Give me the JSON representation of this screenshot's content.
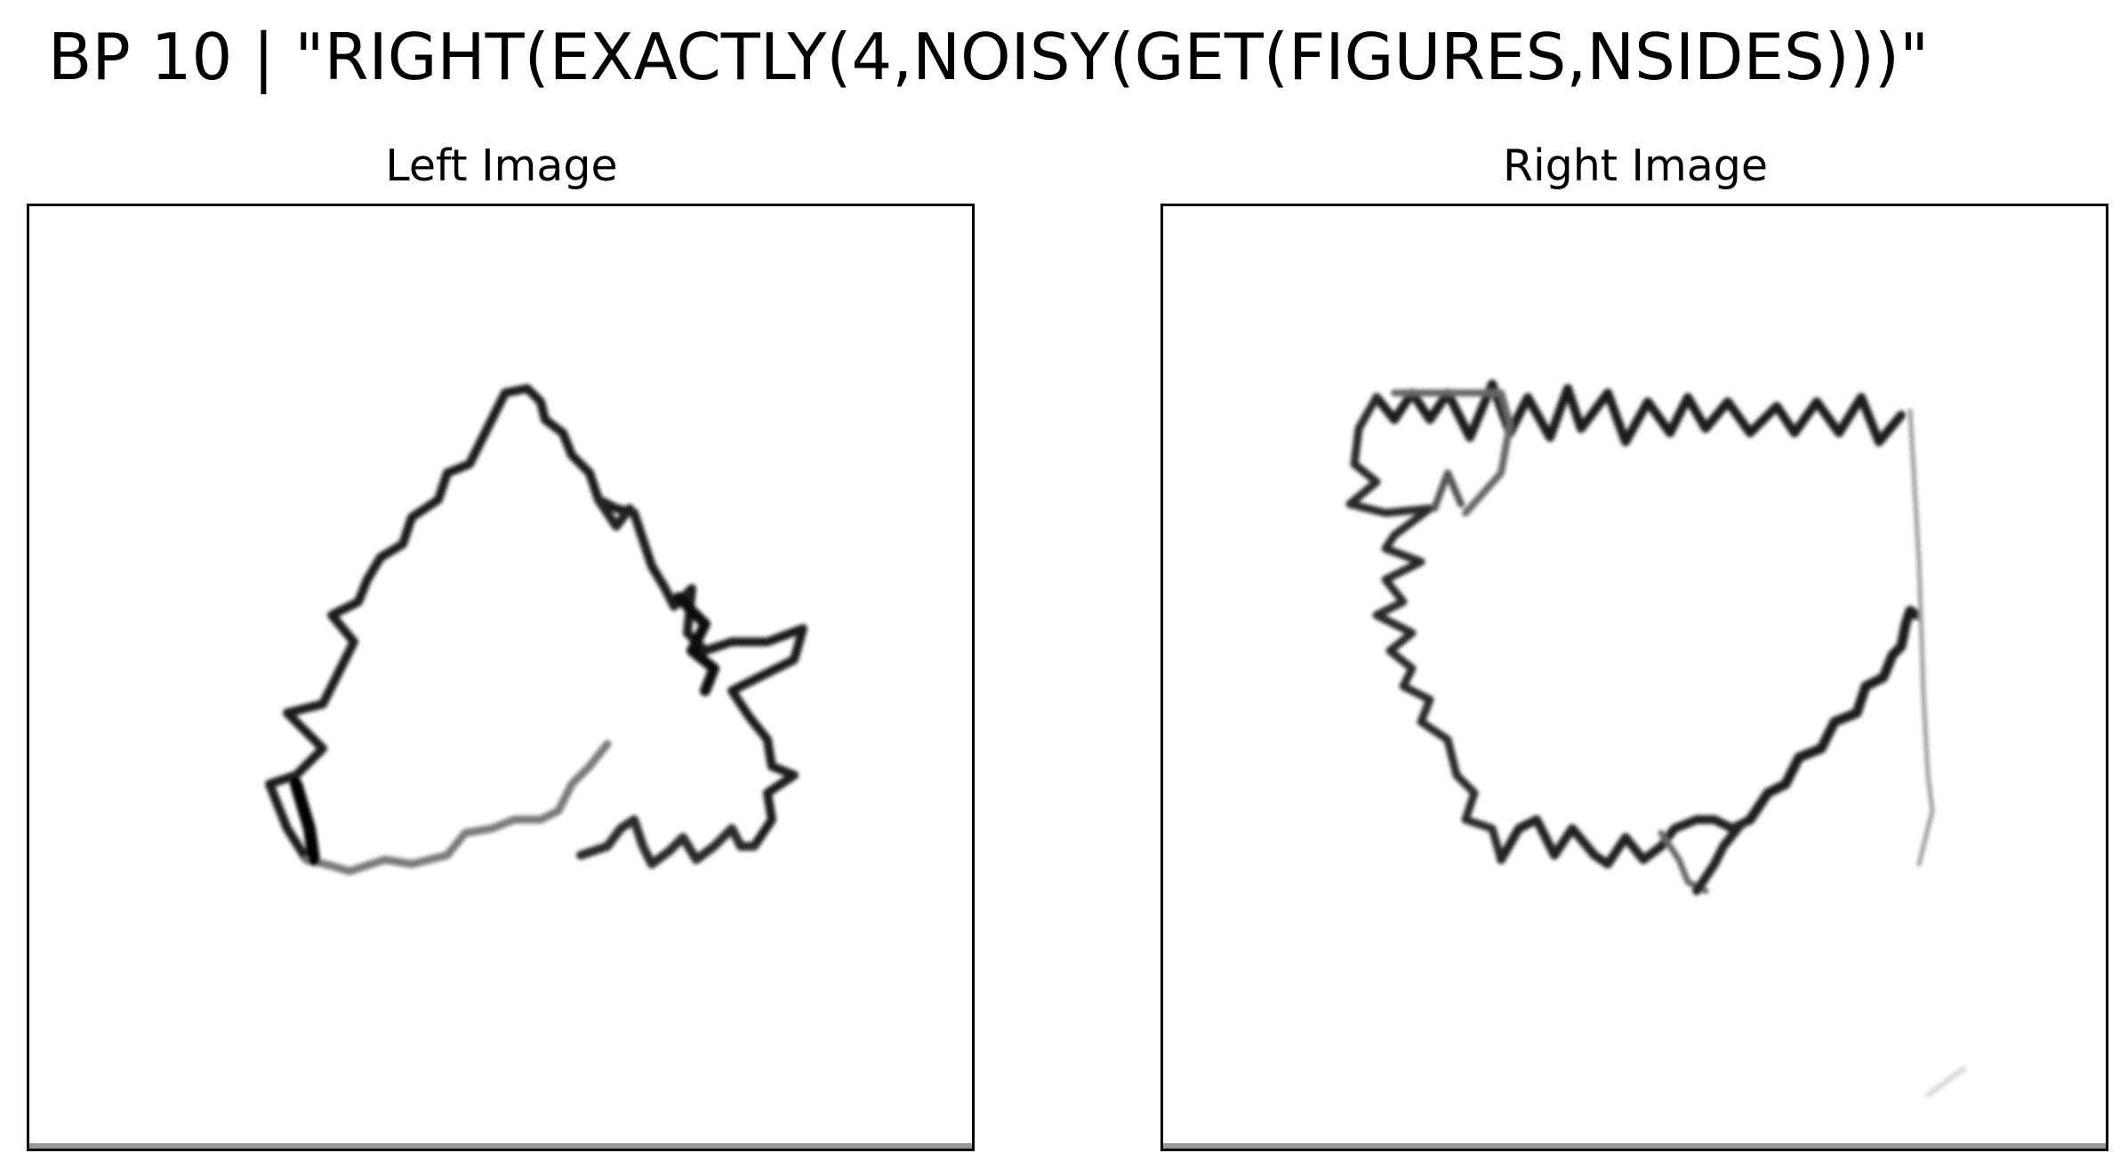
{
  "figure": {
    "title": "BP 10 | \"RIGHT(EXACTLY(4,NOISY(GET(FIGURES,NSIDES)))\""
  },
  "panels": {
    "left": {
      "title": "Left Image",
      "shape": "noisy-triangle-outline"
    },
    "right": {
      "title": "Right Image",
      "shape": "noisy-quadrilateral-outline"
    }
  },
  "colors": {
    "stroke": "#111111",
    "stroke_light": "#7a7a7a",
    "background": "#ffffff",
    "frame": "#000000"
  }
}
